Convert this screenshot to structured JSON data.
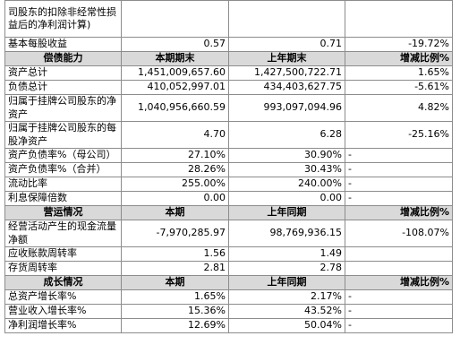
{
  "table": {
    "top_rows": [
      [
        "司股东的扣除非经常性损益后的净利润计算)",
        null,
        null,
        null
      ],
      [
        "基本每股收益",
        "0.57",
        "0.71",
        "-19.72%"
      ]
    ],
    "sections": [
      {
        "header": [
          "偿债能力",
          "本期期末",
          "上年期末",
          "增减比例%"
        ],
        "rows": [
          [
            "资产总计",
            "1,451,009,657.60",
            "1,427,500,722.71",
            "1.65%"
          ],
          [
            "负债总计",
            "410,052,997.01",
            "434,403,627.75",
            "-5.61%"
          ],
          [
            "归属于挂牌公司股东的净资产",
            "1,040,956,660.59",
            "993,097,094.96",
            "4.82%"
          ],
          [
            "归属于挂牌公司股东的每股净资产",
            "4.70",
            "6.28",
            "-25.16%"
          ],
          [
            "资产负债率%（母公司）",
            "27.10%",
            "30.90%",
            "-"
          ],
          [
            "资产负债率%（合并）",
            "28.26%",
            "30.43%",
            "-"
          ],
          [
            "流动比率",
            "255.00%",
            "240.00%",
            "-"
          ],
          [
            "利息保障倍数",
            "0.00",
            "0.00",
            "-"
          ]
        ]
      },
      {
        "header": [
          "营运情况",
          "本期",
          "上年同期",
          "增减比例%"
        ],
        "rows": [
          [
            "经营活动产生的现金流量净额",
            "-7,970,285.97",
            "98,769,936.15",
            "-108.07%"
          ],
          [
            "应收账款周转率",
            "1.56",
            "1.49",
            null
          ],
          [
            "存货周转率",
            "2.81",
            "2.78",
            null
          ]
        ]
      },
      {
        "header": [
          "成长情况",
          "本期",
          "上年同期",
          "增减比例%"
        ],
        "rows": [
          [
            "总资产增长率%",
            "1.65%",
            "2.17%",
            "-"
          ],
          [
            "营业收入增长率%",
            "15.36%",
            "43.52%",
            "-"
          ],
          [
            "净利润增长率%",
            "12.69%",
            "50.04%",
            "-"
          ]
        ]
      }
    ]
  }
}
